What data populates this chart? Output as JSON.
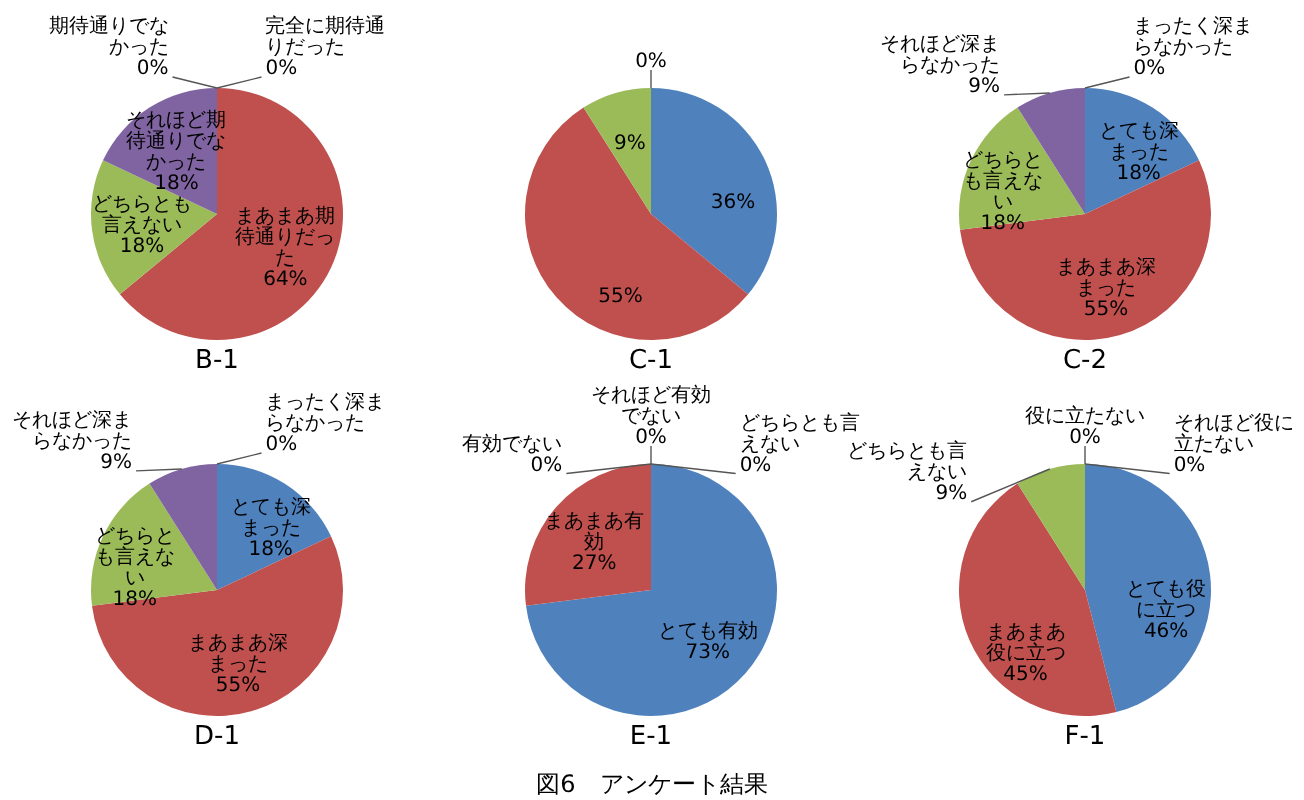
{
  "chart_data": [
    {
      "type": "pie",
      "title": "B-1",
      "categories": [
        "完全に期待通りだった",
        "まあまあ期待通りだった",
        "どちらとも言えない",
        "それほど期待通りでなかった",
        "期待通りでなかった"
      ],
      "values": [
        0,
        64,
        18,
        18,
        0
      ],
      "value_labels": [
        "0%",
        "64%",
        "18%",
        "18%",
        "0%"
      ],
      "colors": [
        "#4f81bd",
        "#c0504d",
        "#9bbb59",
        "#8064a2",
        "#4bacc6"
      ]
    },
    {
      "type": "pie",
      "title": "C-1",
      "categories": [
        null,
        null,
        null,
        null
      ],
      "values": [
        36,
        55,
        9,
        0
      ],
      "value_labels": [
        "36%",
        "55%",
        "9%",
        "0%"
      ],
      "colors": [
        "#4f81bd",
        "#c0504d",
        "#9bbb59",
        "#8064a2"
      ]
    },
    {
      "type": "pie",
      "title": "C-2",
      "categories": [
        "とても深まった",
        "まあまあ深まった",
        "どちらとも言えない",
        "それほど深まらなかった",
        "まったく深まらなかった"
      ],
      "values": [
        18,
        55,
        18,
        9,
        0
      ],
      "value_labels": [
        "18%",
        "55%",
        "18%",
        "9%",
        "0%"
      ],
      "colors": [
        "#4f81bd",
        "#c0504d",
        "#9bbb59",
        "#8064a2",
        "#4bacc6"
      ]
    },
    {
      "type": "pie",
      "title": "D-1",
      "categories": [
        "とても深まった",
        "まあまあ深まった",
        "どちらとも言えない",
        "それほど深まらなかった",
        "まったく深まらなかった"
      ],
      "values": [
        18,
        55,
        18,
        9,
        0
      ],
      "value_labels": [
        "18%",
        "55%",
        "18%",
        "9%",
        "0%"
      ],
      "colors": [
        "#4f81bd",
        "#c0504d",
        "#9bbb59",
        "#8064a2",
        "#4bacc6"
      ]
    },
    {
      "type": "pie",
      "title": "E-1",
      "categories": [
        "とても有効",
        "まあまあ有効",
        "どちらとも言えない",
        "それほど有効でない",
        "有効でない"
      ],
      "values": [
        73,
        27,
        0,
        0,
        0
      ],
      "value_labels": [
        "73%",
        "27%",
        "0%",
        "0%",
        "0%"
      ],
      "colors": [
        "#4f81bd",
        "#c0504d",
        "#9bbb59",
        "#8064a2",
        "#4bacc6"
      ]
    },
    {
      "type": "pie",
      "title": "F-1",
      "categories": [
        "とても役に立つ",
        "まあまあ役に立つ",
        "どちらとも言えない",
        "それほど役に立たない",
        "役に立たない"
      ],
      "values": [
        46,
        45,
        9,
        0,
        0
      ],
      "value_labels": [
        "46%",
        "45%",
        "9%",
        "0%",
        "0%"
      ],
      "colors": [
        "#4f81bd",
        "#c0504d",
        "#9bbb59",
        "#8064a2",
        "#4bacc6"
      ],
      "annotations": [
        "図6　アンケート結果"
      ]
    }
  ]
}
